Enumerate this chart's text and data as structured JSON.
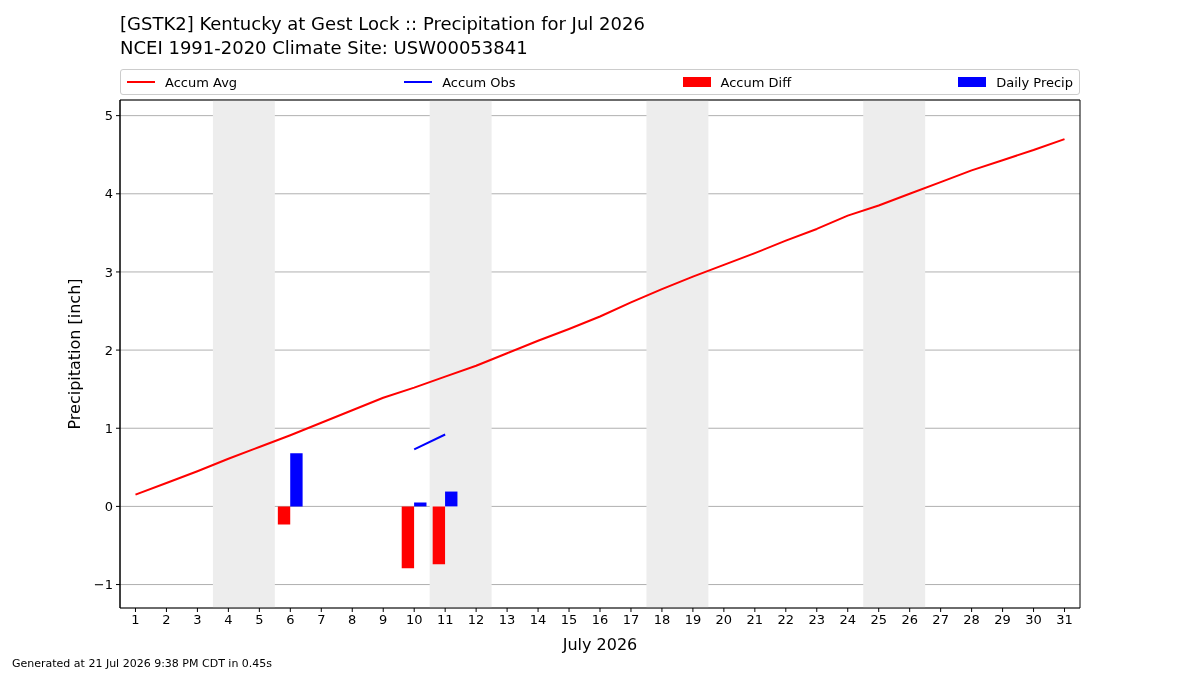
{
  "chart_data": {
    "type": "line",
    "title": "[GSTK2] Kentucky at Gest Lock :: Precipitation for Jul 2026",
    "subtitle": "NCEI 1991-2020 Climate Site: USW00053841",
    "xlabel": "July 2026",
    "ylabel": "Precipitation [inch]",
    "x": [
      1,
      2,
      3,
      4,
      5,
      6,
      7,
      8,
      9,
      10,
      11,
      12,
      13,
      14,
      15,
      16,
      17,
      18,
      19,
      20,
      21,
      22,
      23,
      24,
      25,
      26,
      27,
      28,
      29,
      30,
      31
    ],
    "series": [
      {
        "name": "Accum Avg",
        "color": "#ff0000",
        "values": [
          0.15,
          0.3,
          0.45,
          0.61,
          0.76,
          0.91,
          1.07,
          1.23,
          1.39,
          1.52,
          1.66,
          1.8,
          1.96,
          2.12,
          2.27,
          2.43,
          2.61,
          2.78,
          2.94,
          3.09,
          3.24,
          3.4,
          3.55,
          3.72,
          3.85,
          4.0,
          4.15,
          4.3,
          4.43,
          4.56,
          4.7
        ]
      },
      {
        "name": "Accum Obs",
        "color": "#0000ff",
        "values": [
          null,
          null,
          null,
          null,
          null,
          null,
          null,
          null,
          null,
          0.73,
          0.92,
          null,
          null,
          null,
          null,
          null,
          null,
          null,
          null,
          null,
          null,
          null,
          null,
          null,
          null,
          null,
          null,
          null,
          null,
          null,
          null
        ]
      },
      {
        "name": "Accum Diff",
        "type": "bar",
        "color": "#ff0000",
        "values": [
          null,
          null,
          null,
          null,
          null,
          -0.23,
          null,
          null,
          null,
          -0.79,
          -0.74,
          null,
          null,
          null,
          null,
          null,
          null,
          null,
          null,
          null,
          null,
          null,
          null,
          null,
          null,
          null,
          null,
          null,
          null,
          null,
          null
        ]
      },
      {
        "name": "Daily Precip",
        "type": "bar",
        "color": "#0000ff",
        "values": [
          null,
          null,
          null,
          null,
          null,
          0.68,
          null,
          null,
          null,
          0.05,
          0.19,
          null,
          null,
          null,
          null,
          null,
          null,
          null,
          null,
          null,
          null,
          null,
          null,
          null,
          null,
          null,
          null,
          null,
          null,
          null,
          null
        ]
      }
    ],
    "xlim": [
      0.5,
      31.5
    ],
    "xticks": [
      1,
      2,
      3,
      4,
      5,
      6,
      7,
      8,
      9,
      10,
      11,
      12,
      13,
      14,
      15,
      16,
      17,
      18,
      19,
      20,
      21,
      22,
      23,
      24,
      25,
      26,
      27,
      28,
      29,
      30,
      31
    ],
    "ylim": [
      -1.3,
      5.2
    ],
    "yticks": [
      {
        "value": -1,
        "label": "−1"
      },
      0,
      1,
      2,
      3,
      4,
      5
    ],
    "bands": [
      {
        "axis": "x",
        "from": 3.5,
        "to": 5.5,
        "color": "#ededed"
      },
      {
        "axis": "x",
        "from": 10.5,
        "to": 12.5,
        "color": "#ededed"
      },
      {
        "axis": "x",
        "from": 17.5,
        "to": 19.5,
        "color": "#ededed"
      },
      {
        "axis": "x",
        "from": 24.5,
        "to": 26.5,
        "color": "#ededed"
      }
    ],
    "grid": "y",
    "legend": "top",
    "annotations": [
      "Generated at 21 Jul 2026 9:38 PM CDT in 0.45s"
    ]
  }
}
